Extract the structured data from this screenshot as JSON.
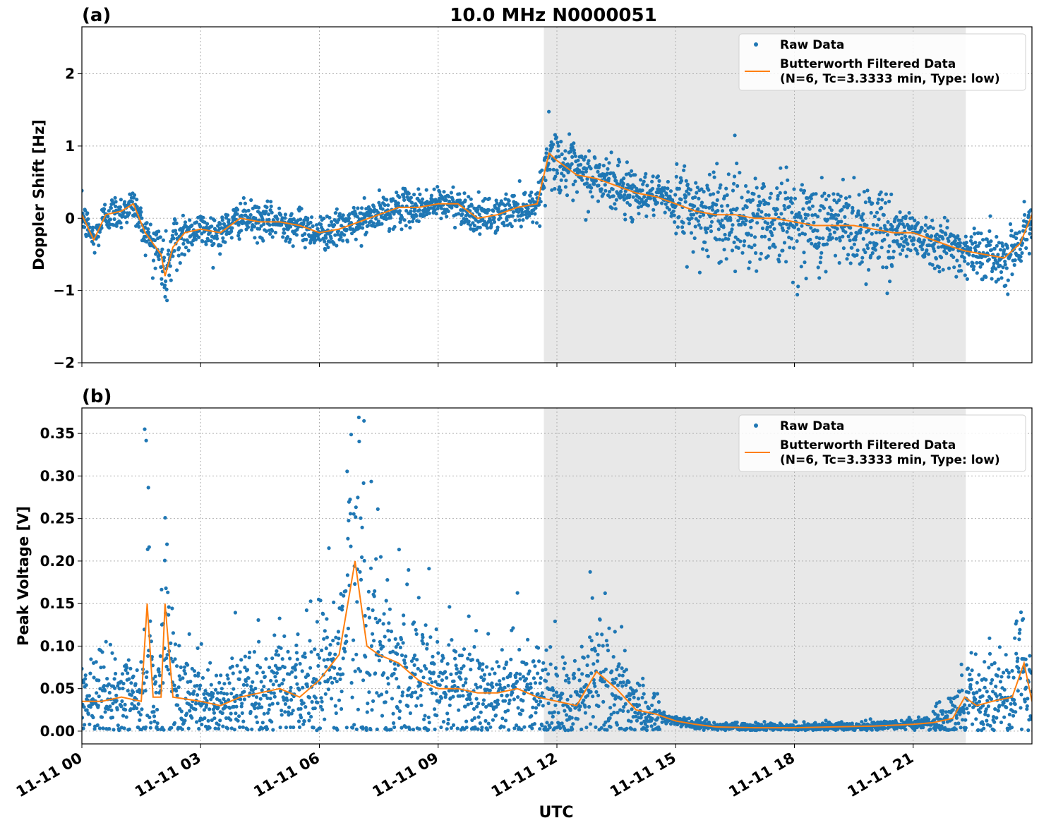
{
  "title": "10.0 MHz N0000051",
  "xlabel": "UTC",
  "x_ticks": [
    "11-11 00",
    "11-11 03",
    "11-11 06",
    "11-11 09",
    "11-11 12",
    "11-11 15",
    "11-11 18",
    "11-11 21"
  ],
  "x_tick_hours": [
    0,
    3,
    6,
    9,
    12,
    15,
    18,
    21
  ],
  "xlim_hours": [
    0,
    24
  ],
  "shaded_region_hours": [
    11.67,
    22.33
  ],
  "colors": {
    "raw": "#1f77b4",
    "filtered": "#ff7f0e",
    "shade": "#e8e8e8",
    "grid": "#b0b0b0"
  },
  "legend": {
    "raw": "Raw Data",
    "filtered_line1": "Butterworth Filtered Data",
    "filtered_line2": "(N=6, Tc=3.3333 min, Type: low)"
  },
  "chart_data": [
    {
      "type": "scatter",
      "panel": "(a)",
      "ylabel": "Doppler Shift [Hz]",
      "ylim": [
        -2,
        2.65
      ],
      "y_ticks": [
        -2,
        -1,
        0,
        1,
        2
      ],
      "y_tick_labels": [
        "−2",
        "−1",
        "0",
        "1",
        "2"
      ],
      "grid": true,
      "legend_position": "top-right",
      "series": [
        {
          "name": "Raw Data",
          "style": "points"
        },
        {
          "name": "Butterworth Filtered Data (N=6, Tc=3.3333 min, Type: low)",
          "style": "line",
          "x": [
            0,
            0.3,
            0.6,
            1,
            1.3,
            1.6,
            2,
            2.1,
            2.3,
            2.6,
            3,
            3.5,
            4,
            4.5,
            5,
            5.5,
            6,
            6.5,
            7,
            7.5,
            8,
            8.5,
            9,
            9.5,
            10,
            10.5,
            11,
            11.5,
            11.8,
            12,
            12.5,
            13,
            13.5,
            14,
            14.5,
            15,
            15.5,
            16,
            16.5,
            17,
            17.5,
            18,
            18.5,
            19,
            19.5,
            20,
            20.5,
            21,
            21.5,
            22,
            22.3,
            22.8,
            23.3,
            23.7,
            24
          ],
          "y": [
            0.05,
            -0.3,
            0.05,
            0.1,
            0.2,
            -0.2,
            -0.5,
            -0.8,
            -0.4,
            -0.2,
            -0.15,
            -0.2,
            0.0,
            -0.05,
            -0.05,
            -0.1,
            -0.2,
            -0.15,
            -0.05,
            0.05,
            0.15,
            0.15,
            0.2,
            0.2,
            0.0,
            0.05,
            0.15,
            0.2,
            0.9,
            0.8,
            0.6,
            0.55,
            0.45,
            0.35,
            0.3,
            0.2,
            0.1,
            0.05,
            0.05,
            0.0,
            0.0,
            -0.05,
            -0.1,
            -0.1,
            -0.1,
            -0.15,
            -0.2,
            -0.2,
            -0.3,
            -0.4,
            -0.45,
            -0.5,
            -0.55,
            -0.35,
            0.05
          ]
        }
      ]
    },
    {
      "type": "scatter",
      "panel": "(b)",
      "ylabel": "Peak Voltage [V]",
      "ylim": [
        -0.015,
        0.38
      ],
      "y_ticks": [
        0,
        0.05,
        0.1,
        0.15,
        0.2,
        0.25,
        0.3,
        0.35
      ],
      "y_tick_labels": [
        "0.00",
        "0.05",
        "0.10",
        "0.15",
        "0.20",
        "0.25",
        "0.30",
        "0.35"
      ],
      "grid": true,
      "legend_position": "top-right",
      "series": [
        {
          "name": "Raw Data",
          "style": "points"
        },
        {
          "name": "Butterworth Filtered Data (N=6, Tc=3.3333 min, Type: low)",
          "style": "line",
          "x": [
            0,
            0.5,
            1,
            1.5,
            1.65,
            1.8,
            2,
            2.1,
            2.3,
            3,
            3.5,
            4,
            4.5,
            5,
            5.5,
            6,
            6.5,
            6.9,
            7.2,
            7.5,
            8,
            8.5,
            9,
            9.5,
            10,
            10.5,
            11,
            11.5,
            12,
            12.5,
            13,
            13.5,
            14,
            14.5,
            15,
            15.5,
            16,
            17,
            18,
            19,
            20,
            21,
            21.5,
            22,
            22.3,
            22.6,
            23,
            23.5,
            23.8,
            24
          ],
          "y": [
            0.035,
            0.035,
            0.04,
            0.035,
            0.15,
            0.04,
            0.04,
            0.15,
            0.04,
            0.035,
            0.03,
            0.04,
            0.045,
            0.05,
            0.04,
            0.06,
            0.09,
            0.2,
            0.1,
            0.09,
            0.08,
            0.06,
            0.05,
            0.05,
            0.045,
            0.045,
            0.05,
            0.04,
            0.035,
            0.03,
            0.07,
            0.05,
            0.025,
            0.02,
            0.012,
            0.008,
            0.005,
            0.004,
            0.004,
            0.005,
            0.006,
            0.008,
            0.01,
            0.015,
            0.04,
            0.03,
            0.035,
            0.04,
            0.08,
            0.035
          ]
        }
      ]
    }
  ]
}
